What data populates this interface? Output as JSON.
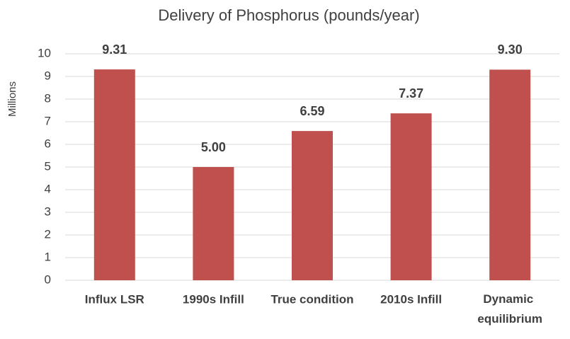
{
  "chart_data": {
    "type": "bar",
    "title": "Delivery of Phosphorus (pounds/year)",
    "y_label": "Millions",
    "categories": [
      "Influx LSR",
      "1990s Infill",
      "True condition",
      "2010s Infill",
      "Dynamic equilibrium"
    ],
    "values": [
      9.31,
      5.0,
      6.59,
      7.37,
      9.3
    ],
    "value_labels": [
      "9.31",
      "5.00",
      "6.59",
      "7.37",
      "9.30"
    ],
    "color": "#c0504d",
    "ylim": [
      0,
      10
    ],
    "yticks": [
      0,
      1,
      2,
      3,
      4,
      5,
      6,
      7,
      8,
      9,
      10
    ],
    "grid": true
  }
}
